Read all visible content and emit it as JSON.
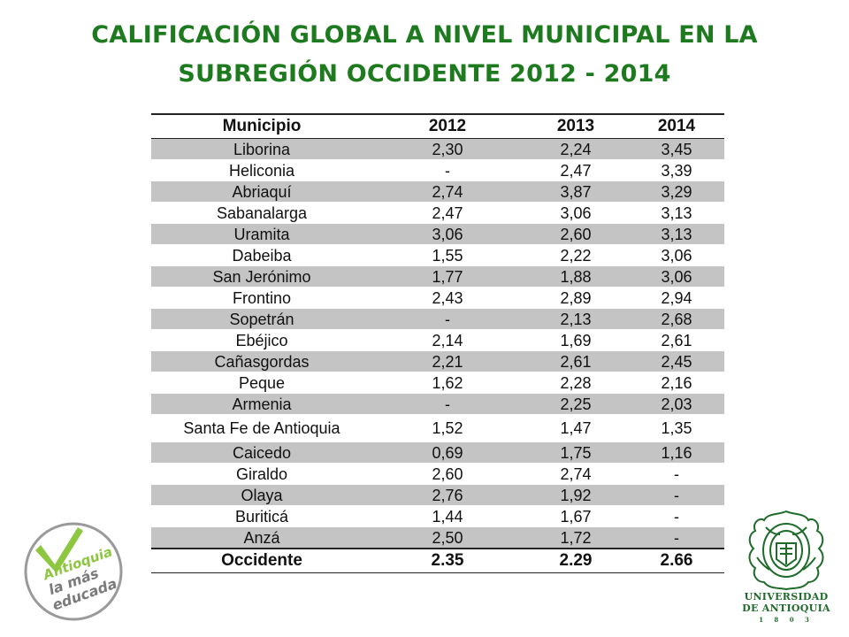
{
  "title": {
    "line1": "CALIFICACIÓN GLOBAL A NIVEL MUNICIPAL EN LA",
    "line2": "SUBREGIÓN OCCIDENTE 2012 - 2014"
  },
  "table": {
    "headers": [
      "Municipio",
      "2012",
      "2013",
      "2014"
    ],
    "rows": [
      [
        "Liborina",
        "2,30",
        "2,24",
        "3,45"
      ],
      [
        "Heliconia",
        "-",
        "2,47",
        "3,39"
      ],
      [
        "Abriaquí",
        "2,74",
        "3,87",
        "3,29"
      ],
      [
        "Sabanalarga",
        "2,47",
        "3,06",
        "3,13"
      ],
      [
        "Uramita",
        "3,06",
        "2,60",
        "3,13"
      ],
      [
        "Dabeiba",
        "1,55",
        "2,22",
        "3,06"
      ],
      [
        "San Jerónimo",
        "1,77",
        "1,88",
        "3,06"
      ],
      [
        "Frontino",
        "2,43",
        "2,89",
        "2,94"
      ],
      [
        "Sopetrán",
        "-",
        "2,13",
        "2,68"
      ],
      [
        "Ebéjico",
        "2,14",
        "1,69",
        "2,61"
      ],
      [
        "Cañasgordas",
        "2,21",
        "2,61",
        "2,45"
      ],
      [
        "Peque",
        "1,62",
        "2,28",
        "2,16"
      ],
      [
        "Armenia",
        "-",
        "2,25",
        "2,03"
      ],
      [
        "Santa Fe de Antioquia",
        "1,52",
        "1,47",
        "1,35"
      ],
      [
        "Caicedo",
        "0,69",
        "1,75",
        "1,16"
      ],
      [
        "Giraldo",
        "2,60",
        "2,74",
        "-"
      ],
      [
        "Olaya",
        "2,76",
        "1,92",
        "-"
      ],
      [
        "Buriticá",
        "1,44",
        "1,67",
        "-"
      ],
      [
        "Anzá",
        "2,50",
        "1,72",
        "-"
      ]
    ],
    "total": [
      "Occidente",
      "2.35",
      "2.29",
      "2.66"
    ]
  },
  "logo_left": {
    "line1": "Antioquia",
    "line2": "la más",
    "line3": "educada",
    "icon": "checkmark-icon",
    "color": "#8dc63f"
  },
  "logo_right": {
    "line1": "UNIVERSIDAD",
    "line2": "DE ANTIOQUIA",
    "year": "1 8 0 3",
    "icon": "university-seal-icon",
    "color": "#1e6b2a"
  }
}
